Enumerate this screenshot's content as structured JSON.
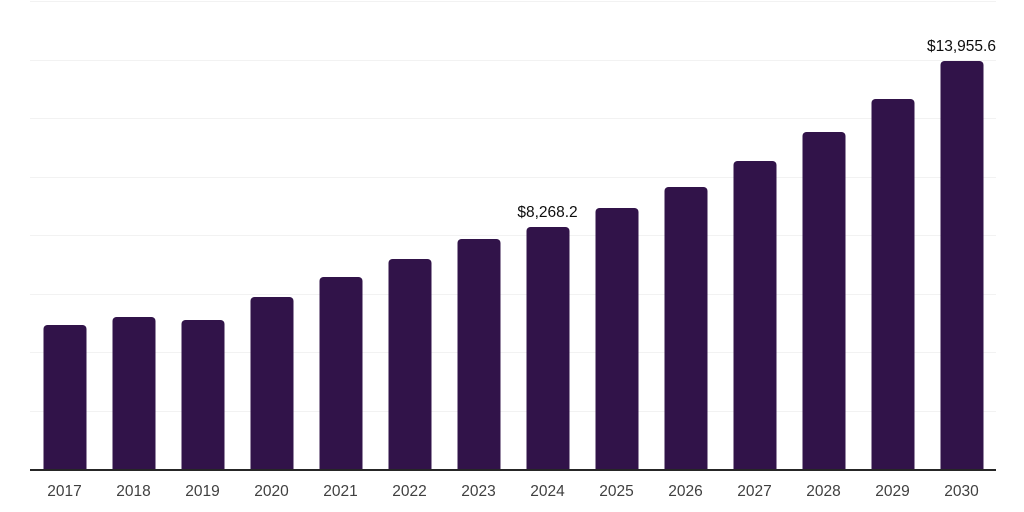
{
  "page": {
    "background": "#ffffff"
  },
  "chart_data": {
    "type": "bar",
    "title": "",
    "xlabel": "",
    "ylabel": "",
    "categories": [
      "2017",
      "2018",
      "2019",
      "2020",
      "2021",
      "2022",
      "2023",
      "2024",
      "2025",
      "2026",
      "2027",
      "2028",
      "2029",
      "2030"
    ],
    "values": [
      4925,
      5200,
      5110,
      5880,
      6565,
      7180,
      7865,
      8268.2,
      8925,
      9640,
      10530,
      11520,
      12650,
      13955.6
    ],
    "data_labels": {
      "2024": "$8,268.2",
      "2030": "$13,955.6"
    },
    "ylim": [
      0,
      16000
    ],
    "gridline_step": 2000,
    "grid": "horizontal-only",
    "y_axis_labels_visible": false,
    "legend": "none",
    "colors": {
      "bar": "#311349",
      "gridline": "#F2F2F2",
      "axis_line": "#262626",
      "tick_label": "#404040",
      "data_label": "#0D0D0D"
    }
  }
}
